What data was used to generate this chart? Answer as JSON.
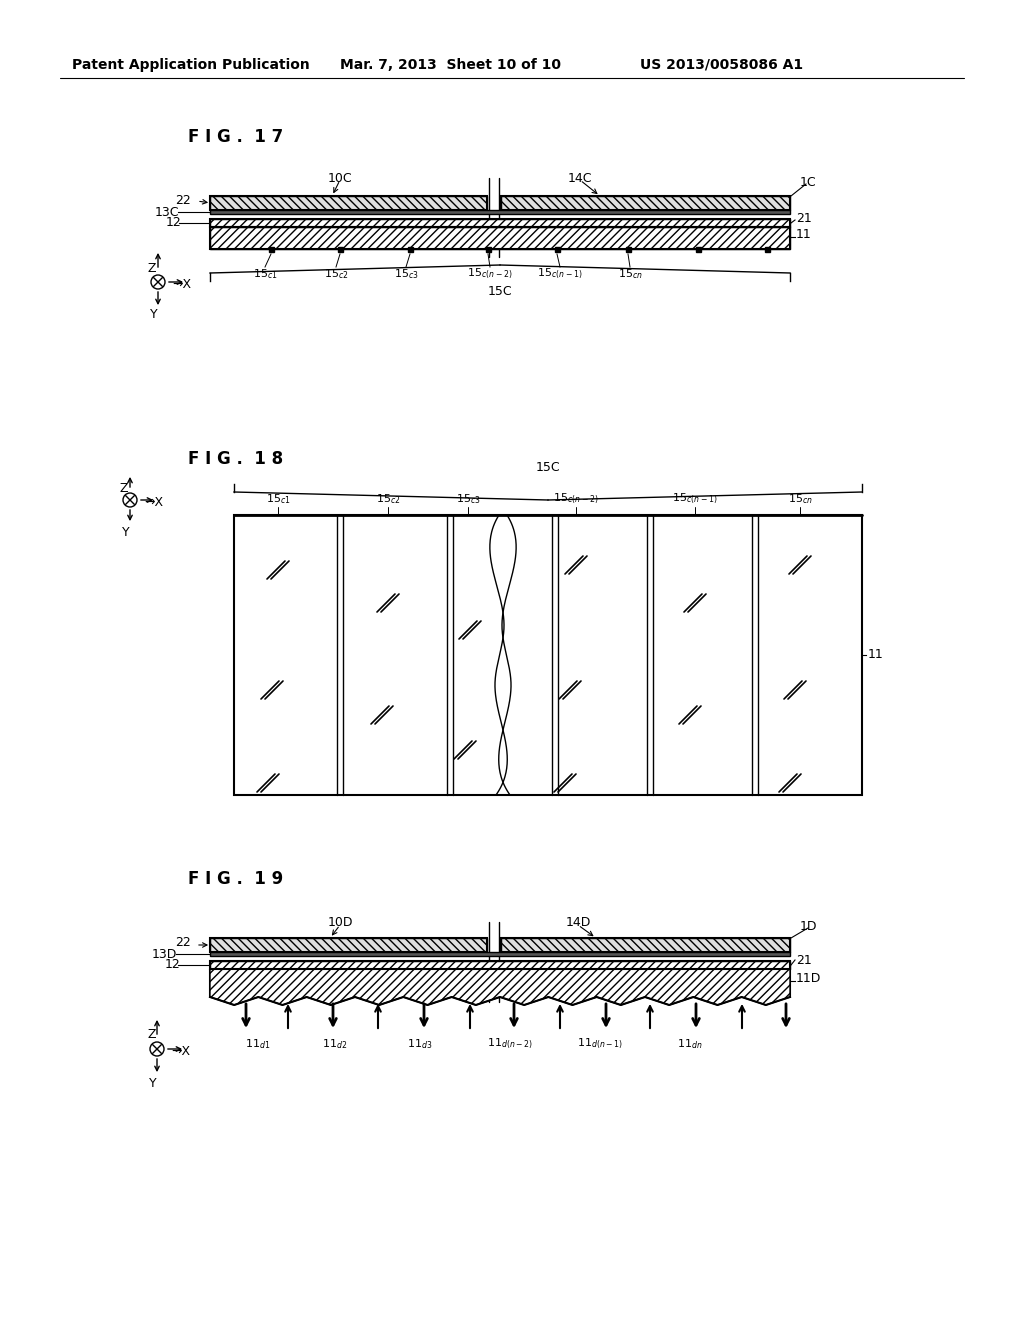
{
  "background_color": "#ffffff",
  "header_left": "Patent Application Publication",
  "header_mid": "Mar. 7, 2013  Sheet 10 of 10",
  "header_right": "US 2013/0058086 A1",
  "fig17_title": "F I G .  1 7",
  "fig18_title": "F I G .  1 8",
  "fig19_title": "F I G .  1 9"
}
